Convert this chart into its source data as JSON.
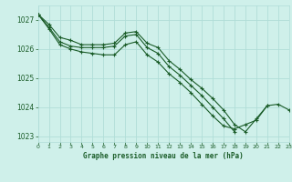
{
  "title": "Graphe pression niveau de la mer (hPa)",
  "bg_color": "#cff0ea",
  "grid_color": "#b0ddd8",
  "line_color": "#1a5c28",
  "xlim": [
    0,
    23
  ],
  "ylim": [
    1022.8,
    1027.5
  ],
  "yticks": [
    1023,
    1024,
    1025,
    1026,
    1027
  ],
  "xticks": [
    0,
    1,
    2,
    3,
    4,
    5,
    6,
    7,
    8,
    9,
    10,
    11,
    12,
    13,
    14,
    15,
    16,
    17,
    18,
    19,
    20,
    21,
    22,
    23
  ],
  "series": [
    [
      1027.2,
      1026.85,
      1026.4,
      1026.3,
      1026.15,
      1026.15,
      1026.15,
      1026.2,
      1026.55,
      1026.6,
      1026.2,
      1026.05,
      1025.6,
      1025.3,
      1024.95,
      1024.65,
      1024.3,
      1023.9,
      1023.4,
      1023.15,
      1023.6,
      1024.05,
      null,
      null
    ],
    [
      1027.2,
      1026.75,
      1026.25,
      1026.1,
      1026.05,
      1026.05,
      1026.05,
      1026.1,
      1026.45,
      1026.5,
      1026.05,
      1025.85,
      1025.4,
      1025.1,
      1024.75,
      1024.4,
      1024.0,
      1023.6,
      1023.15,
      null,
      null,
      null,
      null,
      null
    ],
    [
      1027.2,
      1026.7,
      1026.15,
      1026.0,
      1025.9,
      1025.85,
      1025.8,
      1025.8,
      1026.15,
      1026.25,
      1025.8,
      1025.55,
      1025.15,
      1024.85,
      1024.5,
      1024.1,
      1023.7,
      1023.35,
      1023.25,
      1023.4,
      1023.55,
      1024.05,
      1024.1,
      1023.9
    ]
  ]
}
